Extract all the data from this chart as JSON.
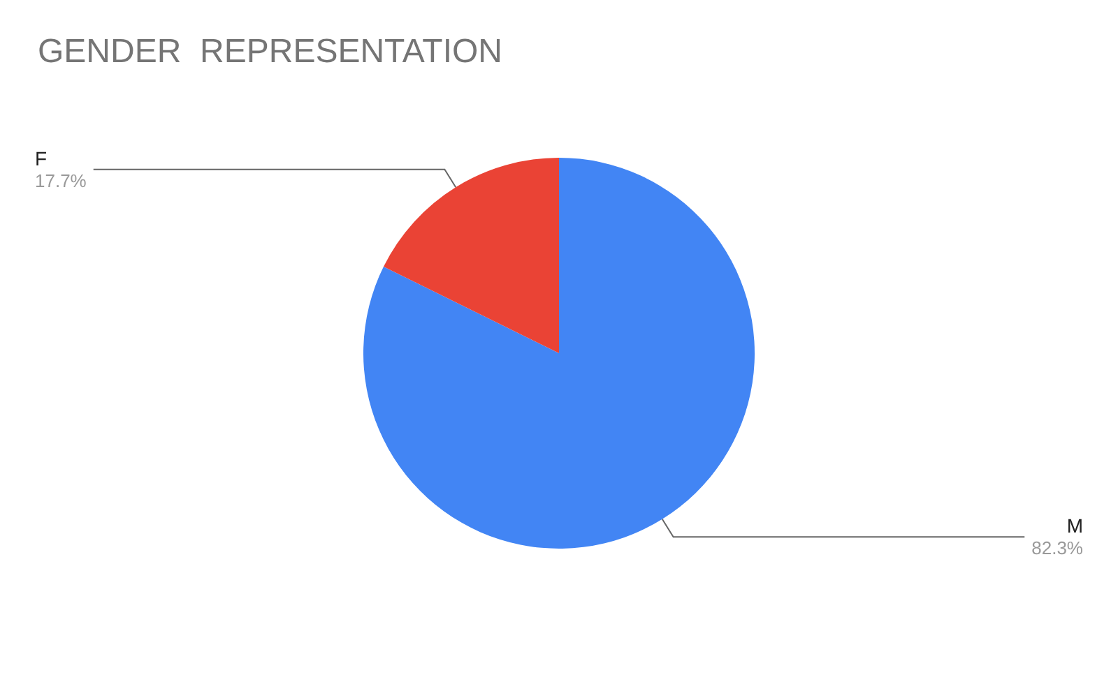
{
  "chart_data": {
    "type": "pie",
    "title": "GENDER  REPRESENTATION",
    "categories": [
      "M",
      "F"
    ],
    "values": [
      82.3,
      17.7
    ],
    "colors": [
      "#4285f4",
      "#ea4335"
    ],
    "value_labels": [
      "82.3%",
      "17.7%"
    ],
    "legend": false
  }
}
